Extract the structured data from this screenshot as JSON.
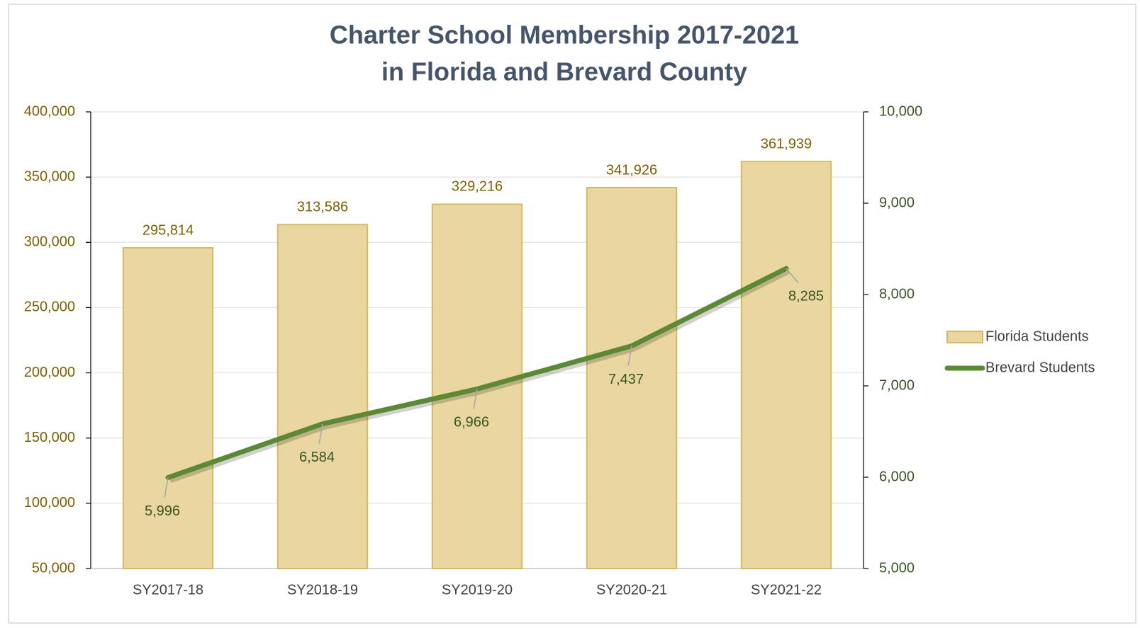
{
  "chart_data": {
    "type": "bar-line",
    "title": [
      "Charter School Membership 2017-2021",
      "in Florida and Brevard County"
    ],
    "categories": [
      "SY2017-18",
      "SY2018-19",
      "SY2019-20",
      "SY2020-21",
      "SY2021-22"
    ],
    "series": [
      {
        "name": "Florida Students",
        "type": "bar",
        "color": "#ead6a0",
        "edge": "#d6ba62",
        "values": [
          295814,
          313586,
          329216,
          341926,
          361939
        ],
        "value_labels": [
          "295,814",
          "313,586",
          "329,216",
          "341,926",
          "361,939"
        ]
      },
      {
        "name": "Brevard Students",
        "type": "line",
        "axis": "y2",
        "color": "#5a8a32",
        "values": [
          5996,
          6584,
          6966,
          7437,
          8285
        ],
        "value_labels": [
          "5,996",
          "6,584",
          "6,966",
          "7,437",
          "8,285"
        ]
      }
    ],
    "ylim": [
      50000,
      400000
    ],
    "yticks": [
      {
        "value": 50000,
        "label": "50,000"
      },
      {
        "value": 100000,
        "label": "100,000"
      },
      {
        "value": 150000,
        "label": "150,000"
      },
      {
        "value": 200000,
        "label": "200,000"
      },
      {
        "value": 250000,
        "label": "250,000"
      },
      {
        "value": 300000,
        "label": "300,000"
      },
      {
        "value": 350000,
        "label": "350,000"
      },
      {
        "value": 400000,
        "label": "400,000"
      }
    ],
    "y2lim": [
      5000,
      10000
    ],
    "y2ticks": [
      {
        "value": 5000,
        "label": "5,000"
      },
      {
        "value": 6000,
        "label": "6,000"
      },
      {
        "value": 7000,
        "label": "7,000"
      },
      {
        "value": 8000,
        "label": "8,000"
      },
      {
        "value": 9000,
        "label": "9,000"
      },
      {
        "value": 10000,
        "label": "10,000"
      }
    ],
    "grid": true,
    "legend": "right"
  }
}
